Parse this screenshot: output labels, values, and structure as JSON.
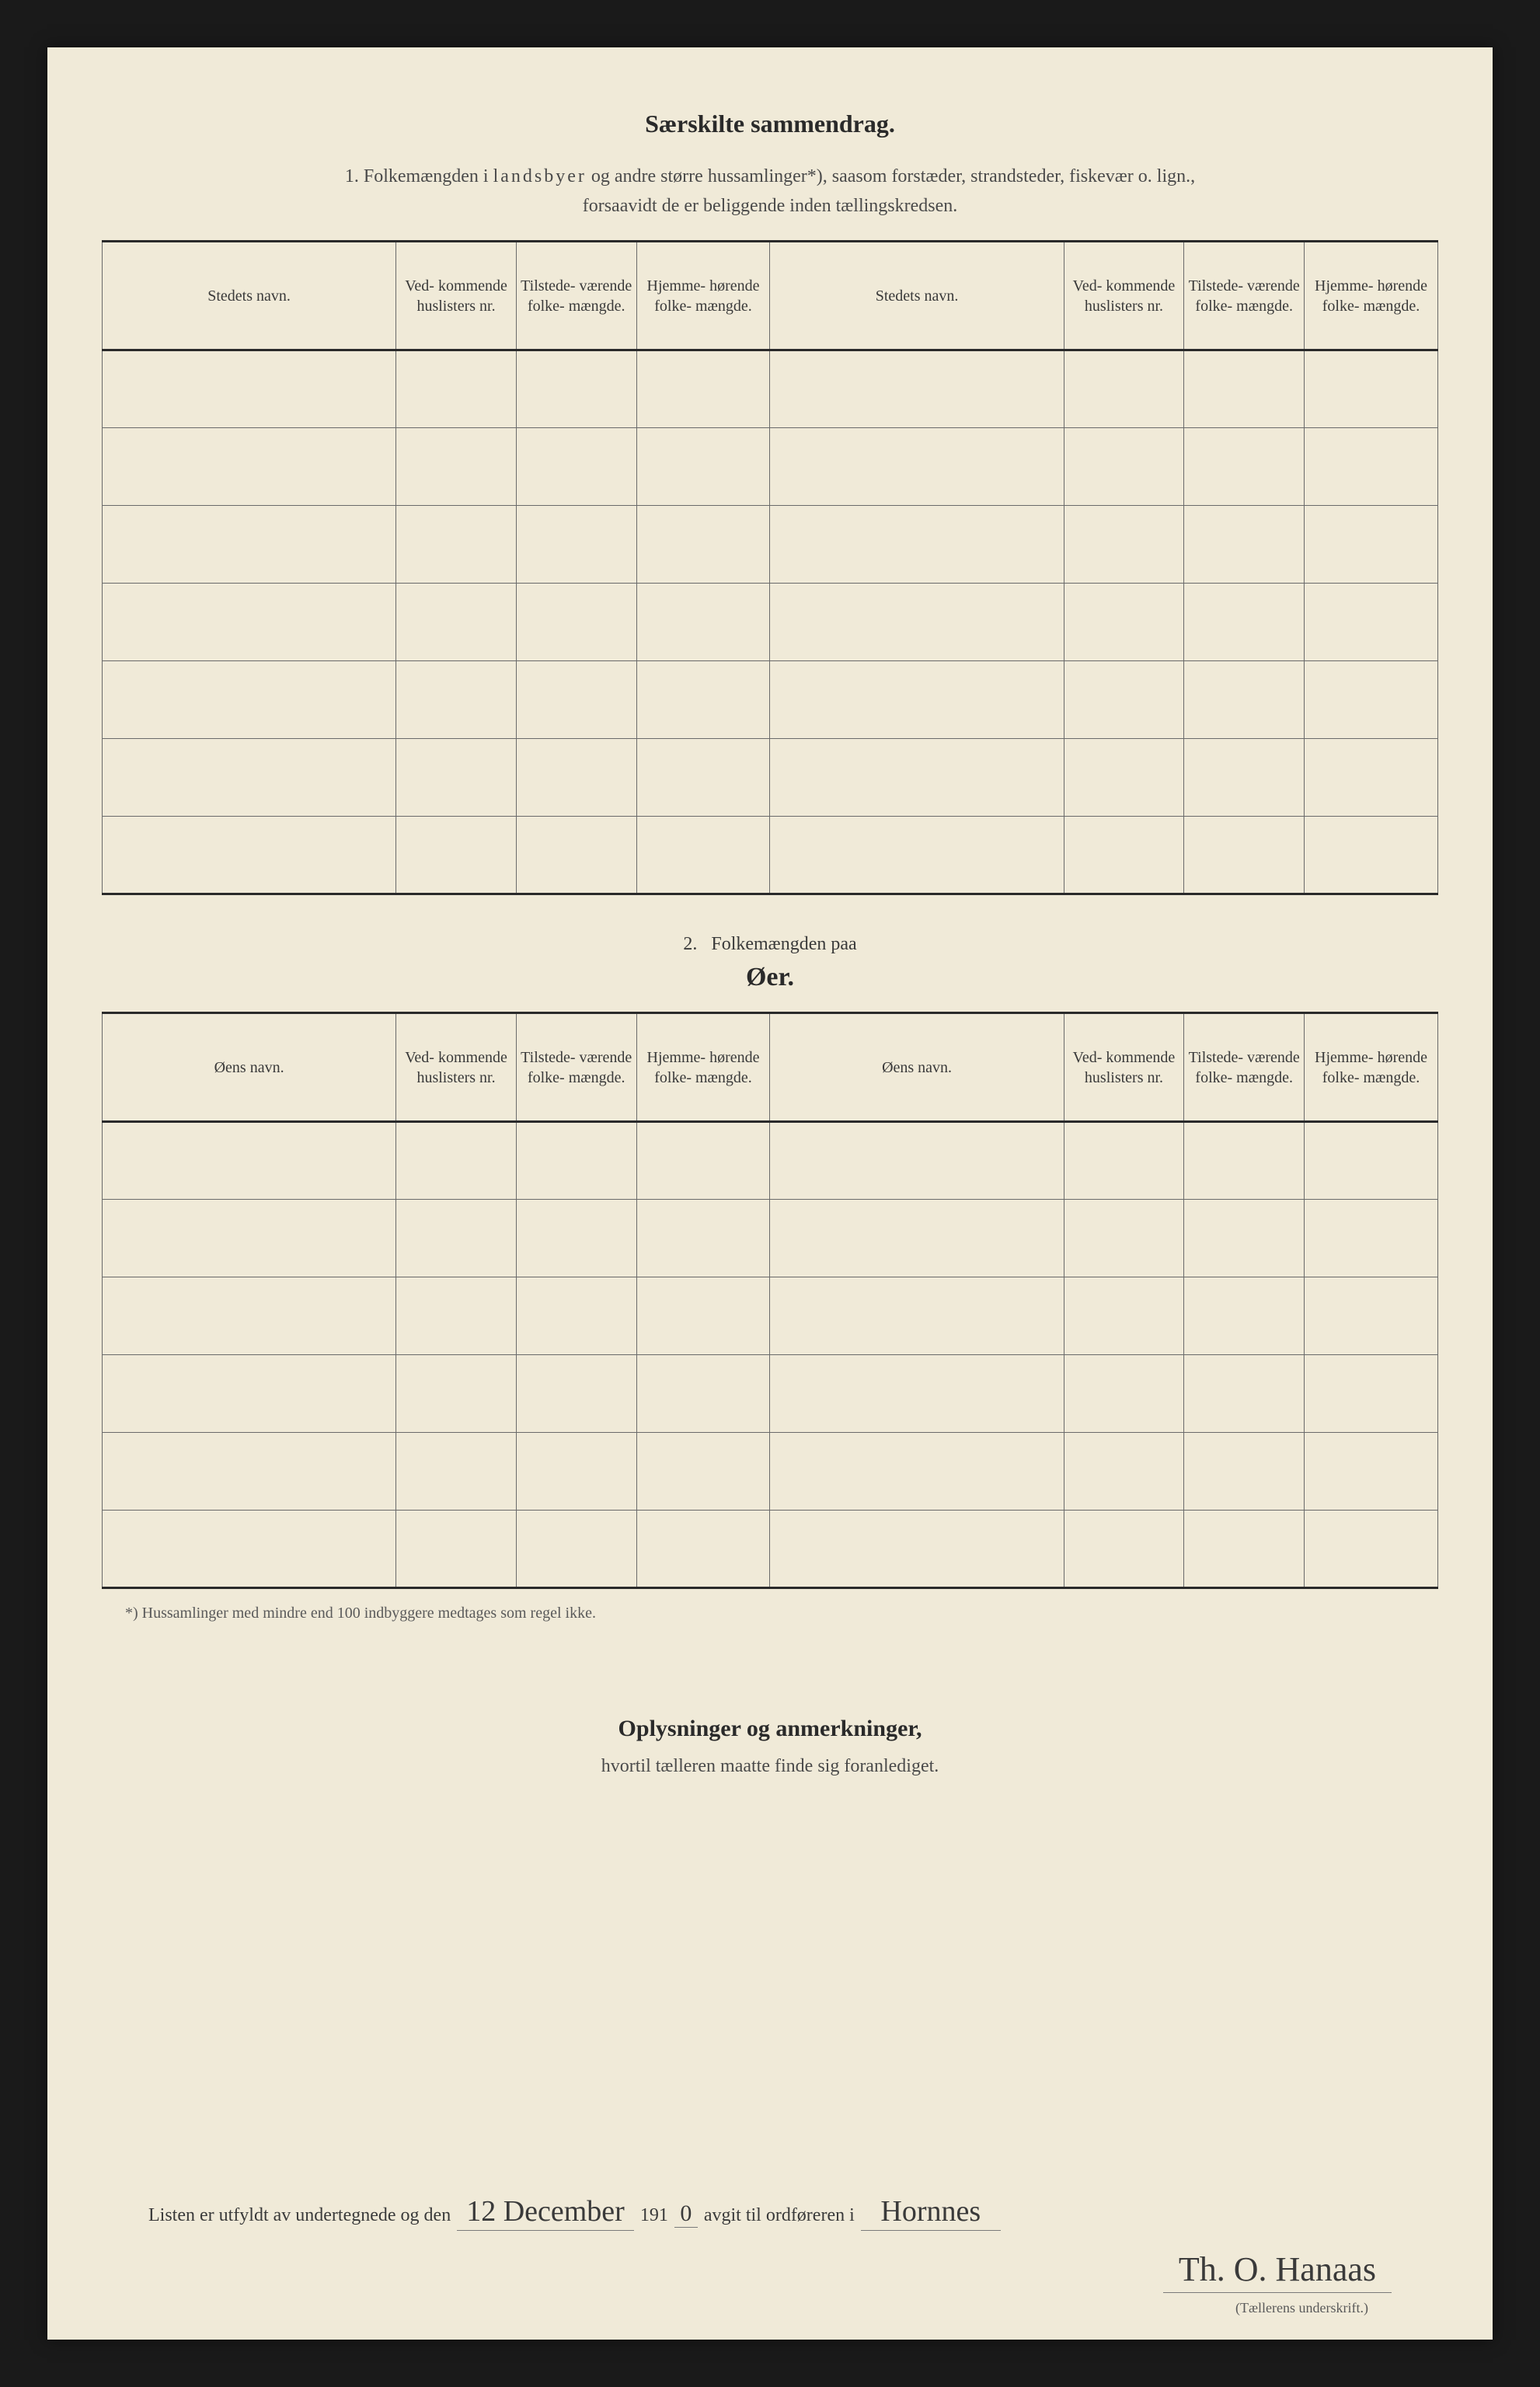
{
  "colors": {
    "page_bg": "#f0ead8",
    "frame_bg": "#1a1a1a",
    "text_dark": "#2a2a2a",
    "text_body": "#4a4a4a",
    "rule": "#6a6a6a"
  },
  "section1": {
    "title": "Særskilte sammendrag.",
    "intro_num": "1.",
    "intro_pre": "Folkemængden i ",
    "intro_spaced": "landsbyer",
    "intro_post": " og andre større hussamlinger*), saasom forstæder, strandsteder, fiskevær o. lign.,",
    "intro_line2": "forsaavidt de er beliggende inden tællingskredsen.",
    "headers": {
      "name": "Stedets navn.",
      "nr": "Ved-\nkommende\nhuslisters\nnr.",
      "tilst": "Tilstede-\nværende\nfolke-\nmængde.",
      "hjem": "Hjemme-\nhørende\nfolke-\nmængde."
    },
    "row_count": 7
  },
  "section2": {
    "title_num": "2.",
    "title_text": "Folkemængden paa",
    "subtitle": "Øer.",
    "headers": {
      "name": "Øens navn.",
      "nr": "Ved-\nkommende\nhuslisters\nnr.",
      "tilst": "Tilstede-\nværende\nfolke-\nmængde.",
      "hjem": "Hjemme-\nhørende\nfolke-\nmængde."
    },
    "row_count": 6
  },
  "footnote": "*) Hussamlinger med mindre end 100 indbyggere medtages som regel ikke.",
  "oplys": {
    "title": "Oplysninger og anmerkninger,",
    "sub": "hvortil tælleren maatte finde sig foranlediget."
  },
  "signature": {
    "pre": "Listen er utfyldt av undertegnede og den",
    "hand_date": "12 December",
    "year_pre": "191",
    "year_hand": "0",
    "mid": "avgit til ordføreren i",
    "hand_place": "Hornnes",
    "sig_name": "Th. O. Hanaas",
    "caption": "(Tællerens underskrift.)"
  }
}
